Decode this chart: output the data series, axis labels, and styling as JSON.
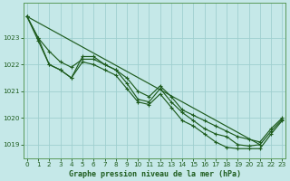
{
  "title": "Graphe pression niveau de la mer (hPa)",
  "background_color": "#c5e8e8",
  "grid_color": "#9fcfcf",
  "line_color": "#1e5c1e",
  "ylim": [
    1018.5,
    1024.3
  ],
  "yticks": [
    1019,
    1020,
    1021,
    1022,
    1023
  ],
  "xlim": [
    -0.3,
    23.3
  ],
  "xticks": [
    0,
    1,
    2,
    3,
    4,
    5,
    6,
    7,
    8,
    9,
    10,
    11,
    12,
    13,
    14,
    15,
    16,
    17,
    18,
    19,
    20,
    21,
    22,
    23
  ],
  "hours": [
    0,
    1,
    2,
    3,
    4,
    5,
    6,
    7,
    8,
    9,
    10,
    11,
    12,
    13,
    14,
    15,
    16,
    17,
    18,
    19,
    20,
    21,
    22,
    23
  ],
  "line_wavy": [
    1023.8,
    1023.0,
    1022.0,
    1021.8,
    1021.5,
    1022.3,
    1022.3,
    1022.0,
    1021.8,
    1021.3,
    1020.7,
    1020.6,
    1021.1,
    1020.6,
    1020.2,
    1019.9,
    1019.6,
    1019.4,
    1019.3,
    1019.0,
    1018.95,
    1019.0,
    1019.5,
    1019.95
  ],
  "line_high": [
    1023.8,
    1023.0,
    1022.5,
    1022.1,
    1021.9,
    1022.2,
    1022.2,
    1022.0,
    1021.8,
    1021.5,
    1021.0,
    1020.8,
    1021.2,
    1020.8,
    1020.3,
    1020.1,
    1019.9,
    1019.7,
    1019.5,
    1019.3,
    1019.2,
    1019.1,
    1019.6,
    1020.0
  ],
  "line_low": [
    1023.8,
    1022.9,
    1022.0,
    1021.8,
    1021.5,
    1022.1,
    1022.0,
    1021.8,
    1021.6,
    1021.1,
    1020.6,
    1020.5,
    1020.9,
    1020.4,
    1019.9,
    1019.7,
    1019.4,
    1019.1,
    1018.9,
    1018.85,
    1018.85,
    1018.85,
    1019.4,
    1019.9
  ],
  "trend_x": [
    0,
    21
  ],
  "trend_y": [
    1023.8,
    1019.0
  ],
  "xlabel_fontsize": 6.0,
  "tick_fontsize": 5.2
}
